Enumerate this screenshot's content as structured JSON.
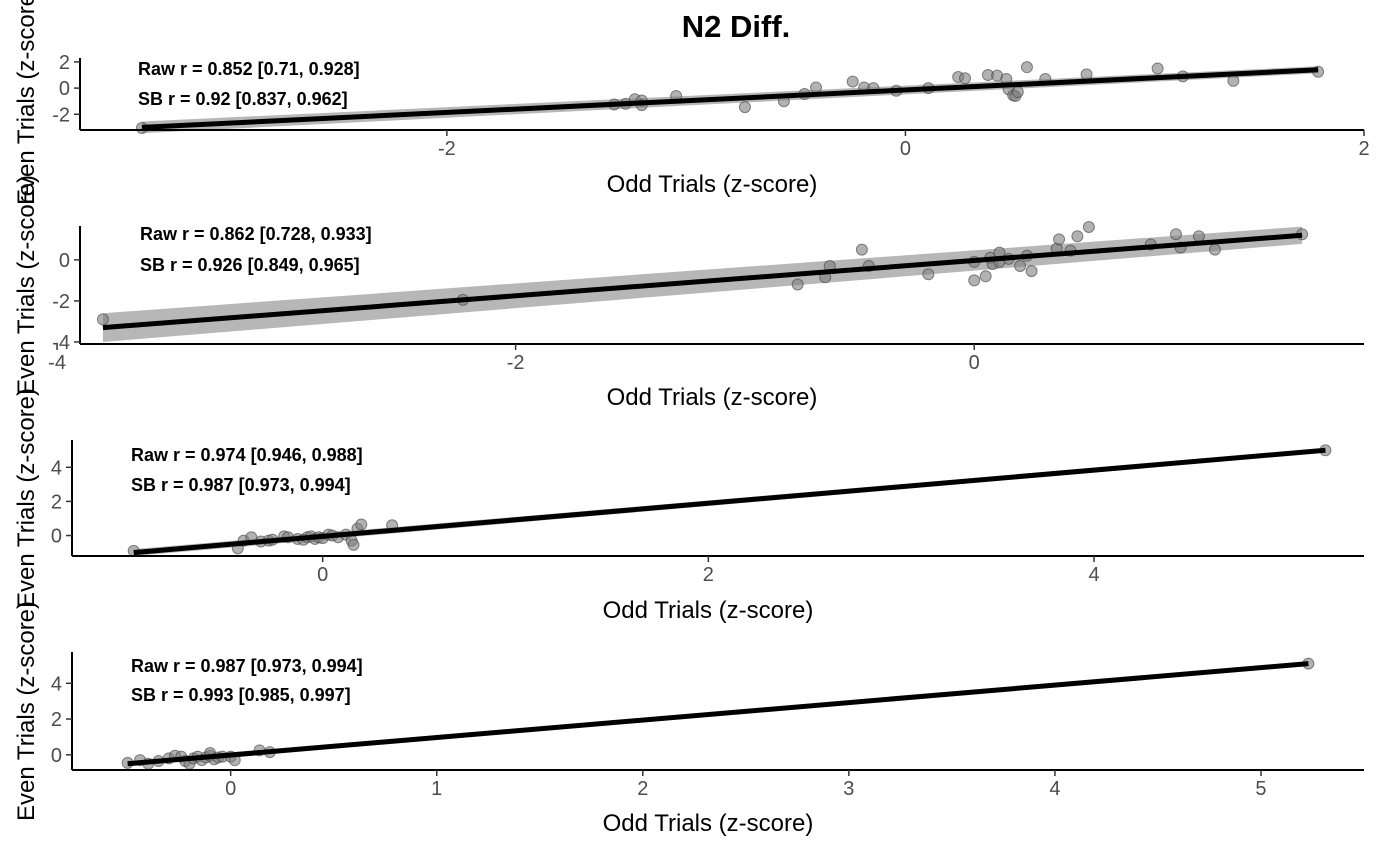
{
  "page": {
    "title": "N2 Diff."
  },
  "chart_data": [
    {
      "type": "scatter",
      "xlabel": "Odd Trials (z-score)",
      "ylabel": "Even Trials (z-score)",
      "xlim": [
        -3.6,
        2.0
      ],
      "ylim": [
        -3.2,
        2.3
      ],
      "xticks": [
        -2,
        0,
        2
      ],
      "yticks": [
        -2,
        0,
        2
      ],
      "annotations": [
        "Raw r = 0.852 [0.71, 0.928]",
        "SB r = 0.92 [0.837, 0.962]"
      ],
      "fit": {
        "x": [
          -3.33,
          1.8
        ],
        "y": [
          -3.0,
          1.4
        ],
        "se": 0.45
      },
      "points": [
        {
          "x": -3.33,
          "y": -3.05
        },
        {
          "x": -1.27,
          "y": -1.25
        },
        {
          "x": -1.22,
          "y": -1.2
        },
        {
          "x": -1.18,
          "y": -0.85
        },
        {
          "x": -1.15,
          "y": -0.95
        },
        {
          "x": -1.15,
          "y": -1.3
        },
        {
          "x": -1.0,
          "y": -0.6
        },
        {
          "x": -0.7,
          "y": -1.45
        },
        {
          "x": -0.53,
          "y": -1.0
        },
        {
          "x": -0.44,
          "y": -0.45
        },
        {
          "x": -0.39,
          "y": 0.05
        },
        {
          "x": -0.23,
          "y": 0.5
        },
        {
          "x": -0.18,
          "y": 0.05
        },
        {
          "x": -0.14,
          "y": 0.0
        },
        {
          "x": -0.04,
          "y": -0.2
        },
        {
          "x": 0.1,
          "y": 0.0
        },
        {
          "x": 0.23,
          "y": 0.85
        },
        {
          "x": 0.26,
          "y": 0.75
        },
        {
          "x": 0.36,
          "y": 1.0
        },
        {
          "x": 0.4,
          "y": 0.95
        },
        {
          "x": 0.44,
          "y": 0.7
        },
        {
          "x": 0.45,
          "y": -0.1
        },
        {
          "x": 0.47,
          "y": -0.55
        },
        {
          "x": 0.48,
          "y": -0.6
        },
        {
          "x": 0.49,
          "y": -0.3
        },
        {
          "x": 0.53,
          "y": 1.6
        },
        {
          "x": 0.61,
          "y": 0.7
        },
        {
          "x": 0.79,
          "y": 1.05
        },
        {
          "x": 1.1,
          "y": 1.5
        },
        {
          "x": 1.21,
          "y": 0.9
        },
        {
          "x": 1.43,
          "y": 0.55
        },
        {
          "x": 1.8,
          "y": 1.25
        }
      ]
    },
    {
      "type": "scatter",
      "xlabel": "Odd Trials (z-score)",
      "ylabel": "Even Trials (z-score)",
      "xlim": [
        -3.9,
        1.7
      ],
      "ylim": [
        -4.1,
        1.65
      ],
      "xticks": [
        -4,
        -2,
        0
      ],
      "yticks": [
        -4,
        -2,
        0
      ],
      "annotations": [
        "Raw r = 0.862 [0.728, 0.933]",
        "SB r = 0.926 [0.849, 0.965]"
      ],
      "fit": {
        "x": [
          -3.8,
          1.43
        ],
        "y": [
          -3.3,
          1.2
        ],
        "se": 0.7
      },
      "points": [
        {
          "x": -3.8,
          "y": -2.9
        },
        {
          "x": -2.23,
          "y": -1.95
        },
        {
          "x": -0.77,
          "y": -1.2
        },
        {
          "x": -0.65,
          "y": -0.85
        },
        {
          "x": -0.63,
          "y": -0.3
        },
        {
          "x": -0.49,
          "y": 0.5
        },
        {
          "x": -0.46,
          "y": -0.3
        },
        {
          "x": -0.2,
          "y": -0.7
        },
        {
          "x": 0.0,
          "y": -1.0
        },
        {
          "x": 0.0,
          "y": -0.1
        },
        {
          "x": 0.05,
          "y": -0.8
        },
        {
          "x": 0.07,
          "y": 0.1
        },
        {
          "x": 0.08,
          "y": -0.2
        },
        {
          "x": 0.11,
          "y": 0.35
        },
        {
          "x": 0.11,
          "y": -0.1
        },
        {
          "x": 0.15,
          "y": 0.05
        },
        {
          "x": 0.2,
          "y": -0.3
        },
        {
          "x": 0.23,
          "y": 0.2
        },
        {
          "x": 0.25,
          "y": -0.55
        },
        {
          "x": 0.36,
          "y": 0.55
        },
        {
          "x": 0.37,
          "y": 1.0
        },
        {
          "x": 0.42,
          "y": 0.45
        },
        {
          "x": 0.45,
          "y": 1.15
        },
        {
          "x": 0.5,
          "y": 1.6
        },
        {
          "x": 0.77,
          "y": 0.75
        },
        {
          "x": 0.88,
          "y": 1.25
        },
        {
          "x": 0.9,
          "y": 0.6
        },
        {
          "x": 0.98,
          "y": 1.15
        },
        {
          "x": 1.05,
          "y": 0.5
        },
        {
          "x": 1.43,
          "y": 1.25
        }
      ]
    },
    {
      "type": "scatter",
      "xlabel": "Odd Trials (z-score)",
      "ylabel": "Even Trials (z-score)",
      "xlim": [
        -1.3,
        5.4
      ],
      "ylim": [
        -1.2,
        5.6
      ],
      "xticks": [
        0,
        2,
        4
      ],
      "yticks": [
        0,
        2,
        4
      ],
      "annotations": [
        "Raw r = 0.974 [0.946, 0.988]",
        "SB r = 0.987 [0.973, 0.994]"
      ],
      "fit": {
        "x": [
          -0.98,
          5.2
        ],
        "y": [
          -1.0,
          5.0
        ],
        "se": 0.2
      },
      "points": [
        {
          "x": -0.98,
          "y": -0.9
        },
        {
          "x": -0.44,
          "y": -0.75
        },
        {
          "x": -0.41,
          "y": -0.3
        },
        {
          "x": -0.37,
          "y": -0.1
        },
        {
          "x": -0.32,
          "y": -0.35
        },
        {
          "x": -0.28,
          "y": -0.3
        },
        {
          "x": -0.26,
          "y": -0.25
        },
        {
          "x": -0.2,
          "y": -0.05
        },
        {
          "x": -0.18,
          "y": -0.1
        },
        {
          "x": -0.13,
          "y": -0.2
        },
        {
          "x": -0.1,
          "y": -0.25
        },
        {
          "x": -0.08,
          "y": -0.1
        },
        {
          "x": -0.06,
          "y": -0.05
        },
        {
          "x": -0.04,
          "y": -0.2
        },
        {
          "x": -0.02,
          "y": -0.1
        },
        {
          "x": 0.0,
          "y": -0.15
        },
        {
          "x": 0.03,
          "y": 0.05
        },
        {
          "x": 0.05,
          "y": 0.0
        },
        {
          "x": 0.08,
          "y": -0.1
        },
        {
          "x": 0.12,
          "y": 0.05
        },
        {
          "x": 0.15,
          "y": -0.3
        },
        {
          "x": 0.16,
          "y": -0.55
        },
        {
          "x": 0.18,
          "y": 0.4
        },
        {
          "x": 0.2,
          "y": 0.65
        },
        {
          "x": 0.36,
          "y": 0.6
        },
        {
          "x": 5.2,
          "y": 5.0
        }
      ]
    },
    {
      "type": "scatter",
      "xlabel": "Odd Trials (z-score)",
      "ylabel": "Even Trials (z-score)",
      "xlim": [
        -0.77,
        5.5
      ],
      "ylim": [
        -0.85,
        5.75
      ],
      "xticks": [
        0,
        1,
        2,
        3,
        4,
        5
      ],
      "yticks": [
        0,
        2,
        4
      ],
      "annotations": [
        "Raw r = 0.987 [0.973, 0.994]",
        "SB r = 0.993 [0.985, 0.997]"
      ],
      "fit": {
        "x": [
          -0.5,
          5.23
        ],
        "y": [
          -0.5,
          5.1
        ],
        "se": 0.15
      },
      "points": [
        {
          "x": -0.5,
          "y": -0.45
        },
        {
          "x": -0.44,
          "y": -0.3
        },
        {
          "x": -0.4,
          "y": -0.5
        },
        {
          "x": -0.35,
          "y": -0.35
        },
        {
          "x": -0.3,
          "y": -0.2
        },
        {
          "x": -0.27,
          "y": -0.05
        },
        {
          "x": -0.24,
          "y": -0.1
        },
        {
          "x": -0.22,
          "y": -0.35
        },
        {
          "x": -0.2,
          "y": -0.5
        },
        {
          "x": -0.18,
          "y": -0.2
        },
        {
          "x": -0.16,
          "y": -0.1
        },
        {
          "x": -0.14,
          "y": -0.3
        },
        {
          "x": -0.12,
          "y": -0.15
        },
        {
          "x": -0.1,
          "y": -0.05
        },
        {
          "x": -0.1,
          "y": 0.1
        },
        {
          "x": -0.08,
          "y": -0.25
        },
        {
          "x": -0.06,
          "y": -0.15
        },
        {
          "x": -0.04,
          "y": -0.1
        },
        {
          "x": 0.0,
          "y": -0.1
        },
        {
          "x": 0.02,
          "y": -0.3
        },
        {
          "x": 0.14,
          "y": 0.25
        },
        {
          "x": 0.19,
          "y": 0.15
        },
        {
          "x": 5.23,
          "y": 5.1
        }
      ]
    }
  ]
}
